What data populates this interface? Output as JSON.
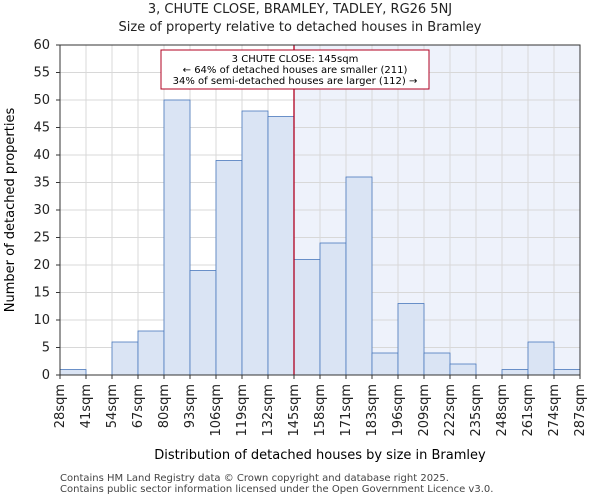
{
  "header": {
    "title": "3, CHUTE CLOSE, BRAMLEY, TADLEY, RG26 5NJ",
    "subtitle": "Size of property relative to detached houses in Bramley"
  },
  "footer": {
    "line1": "Contains HM Land Registry data © Crown copyright and database right 2025.",
    "line2": "Contains public sector information licensed under the Open Government Licence v3.0."
  },
  "chart_data": {
    "type": "bar",
    "title": "Size of property relative to detached houses in Bramley",
    "xlabel": "Distribution of detached houses by size in Bramley",
    "ylabel": "Number of detached properties",
    "ylim": [
      0,
      60
    ],
    "yticks": [
      0,
      5,
      10,
      15,
      20,
      25,
      30,
      35,
      40,
      45,
      50,
      55,
      60
    ],
    "x_ticks": [
      "28sqm",
      "41sqm",
      "54sqm",
      "67sqm",
      "80sqm",
      "93sqm",
      "106sqm",
      "119sqm",
      "132sqm",
      "145sqm",
      "158sqm",
      "171sqm",
      "183sqm",
      "196sqm",
      "209sqm",
      "222sqm",
      "235sqm",
      "248sqm",
      "261sqm",
      "274sqm",
      "287sqm"
    ],
    "values": [
      1,
      0,
      6,
      8,
      50,
      19,
      39,
      48,
      47,
      21,
      24,
      36,
      4,
      13,
      4,
      2,
      0,
      1,
      6,
      1
    ],
    "colors": {
      "bar_fill": "#dae4f4",
      "bar_stroke": "#4a78bc",
      "marker": "#b00020",
      "highlight": "#eef2fb"
    },
    "marker": {
      "value_label": "145sqm",
      "bin_index": 9,
      "annotation": [
        "3 CHUTE CLOSE: 145sqm",
        "← 64% of detached houses are smaller (211)",
        "34% of semi-detached houses are larger (112) →"
      ]
    }
  }
}
